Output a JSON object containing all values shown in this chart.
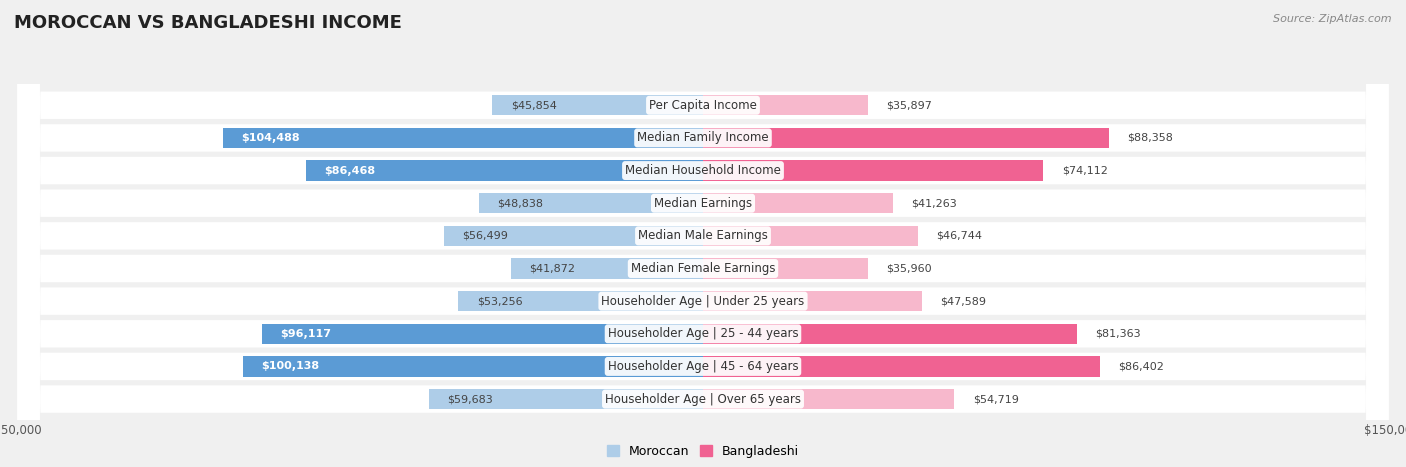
{
  "title": "MOROCCAN VS BANGLADESHI INCOME",
  "source": "Source: ZipAtlas.com",
  "categories": [
    "Per Capita Income",
    "Median Family Income",
    "Median Household Income",
    "Median Earnings",
    "Median Male Earnings",
    "Median Female Earnings",
    "Householder Age | Under 25 years",
    "Householder Age | 25 - 44 years",
    "Householder Age | 45 - 64 years",
    "Householder Age | Over 65 years"
  ],
  "moroccan_values": [
    45854,
    104488,
    86468,
    48838,
    56499,
    41872,
    53256,
    96117,
    100138,
    59683
  ],
  "bangladeshi_values": [
    35897,
    88358,
    74112,
    41263,
    46744,
    35960,
    47589,
    81363,
    86402,
    54719
  ],
  "max_value": 150000,
  "moroccan_color_strong": "#5b9bd5",
  "moroccan_color_light": "#aecde8",
  "bangladeshi_color_strong": "#f06292",
  "bangladeshi_color_light": "#f7b8cc",
  "bg_color": "#f0f0f0",
  "row_bg_color": "#ffffff",
  "title_fontsize": 13,
  "label_fontsize": 8.5,
  "value_fontsize": 8,
  "axis_label_fontsize": 8.5,
  "legend_fontsize": 9,
  "moroccan_strong_indices": [
    1,
    2,
    7,
    8
  ],
  "bangladeshi_strong_indices": [
    1,
    2,
    7,
    8
  ]
}
